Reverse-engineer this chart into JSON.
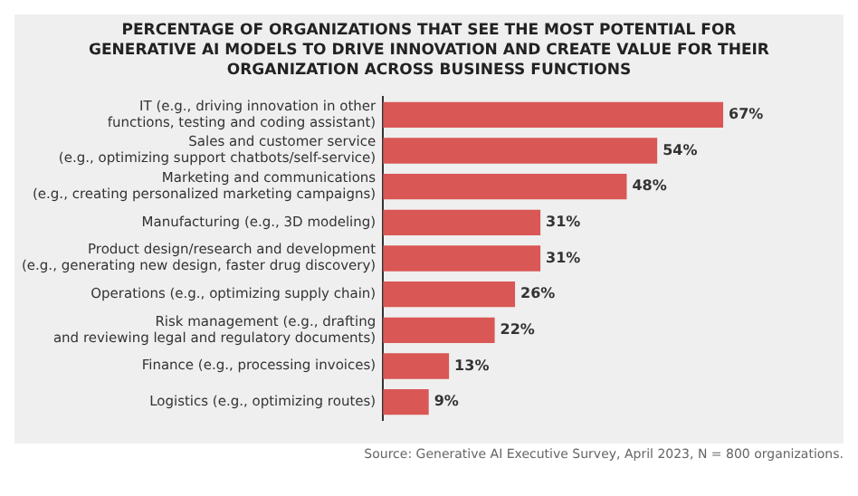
{
  "chart_data": {
    "type": "bar",
    "orientation": "horizontal",
    "title": "PERCENTAGE OF ORGANIZATIONS THAT SEE THE MOST POTENTIAL FOR GENERATIVE AI MODELS TO DRIVE INNOVATION AND CREATE VALUE FOR THEIR ORGANIZATION ACROSS BUSINESS FUNCTIONS",
    "categories": [
      "IT (e.g., driving innovation in other\nfunctions, testing and coding assistant)",
      "Sales and customer service\n(e.g., optimizing support chatbots/self-service)",
      "Marketing and communications\n(e.g., creating personalized marketing campaigns)",
      "Manufacturing (e.g., 3D modeling)",
      "Product design/research and development\n(e.g., generating new design, faster drug discovery)",
      "Operations (e.g., optimizing supply chain)",
      "Risk management (e.g., drafting\nand reviewing legal and regulatory documents)",
      "Finance (e.g., processing invoices)",
      "Logistics (e.g., optimizing routes)"
    ],
    "values": [
      67,
      54,
      48,
      31,
      31,
      26,
      22,
      13,
      9
    ],
    "value_labels": [
      "67%",
      "54%",
      "48%",
      "31%",
      "31%",
      "26%",
      "22%",
      "13%",
      "9%"
    ],
    "color": "#d95755",
    "grid": false,
    "legend": false,
    "annotations": [
      "Source: Generative AI Executive Survey, April 2023, N = 800 organizations."
    ]
  }
}
